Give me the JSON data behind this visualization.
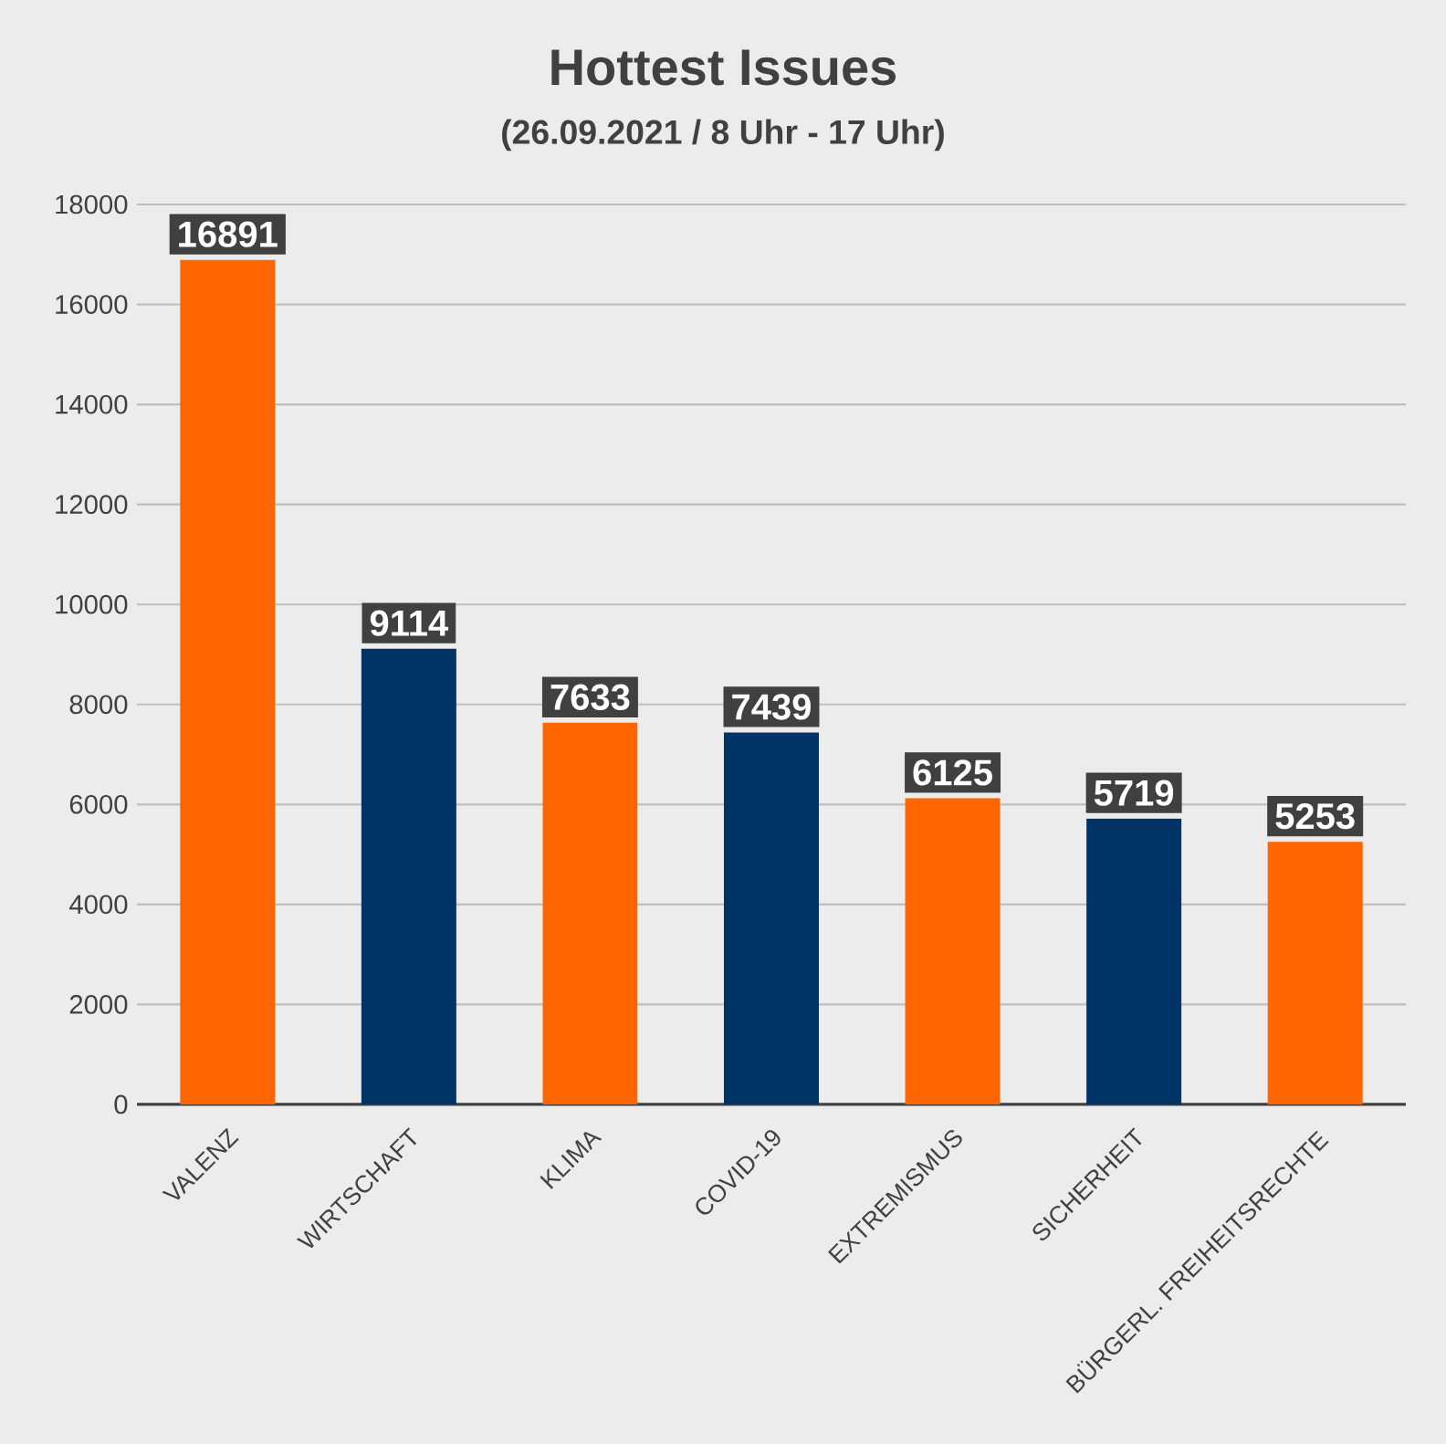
{
  "chart_data": {
    "type": "bar",
    "title": "Hottest Issues",
    "subtitle": "(26.09.2021 / 8 Uhr - 17 Uhr)",
    "categories": [
      "VALENZ",
      "WIRTSCHAFT",
      "KLIMA",
      "COVID-19",
      "EXTREMISMUS",
      "SICHERHEIT",
      "BÜRGERL. FREIHEITSRECHTE"
    ],
    "values": [
      16891,
      9114,
      7633,
      7439,
      6125,
      5719,
      5253
    ],
    "colors": [
      "#ff6600",
      "#003366",
      "#ff6600",
      "#003366",
      "#ff6600",
      "#003366",
      "#ff6600"
    ],
    "ylim": [
      0,
      18000
    ],
    "yticks": [
      0,
      2000,
      4000,
      6000,
      8000,
      10000,
      12000,
      14000,
      16000,
      18000
    ],
    "grid": "y",
    "data_labels": true
  }
}
